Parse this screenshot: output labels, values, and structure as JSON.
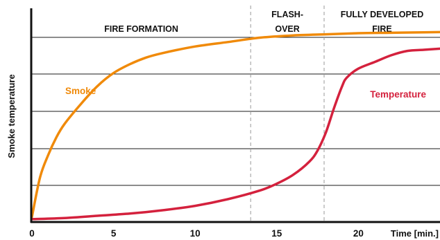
{
  "chart_data": {
    "type": "line",
    "title": "",
    "xlabel": "Time [min.]",
    "ylabel": "Smoke temperature",
    "xlim": [
      0,
      25
    ],
    "x_ticks": [
      "0",
      "5",
      "10",
      "15",
      "20"
    ],
    "y_ticks_labeled": false,
    "grid": "horizontal",
    "phases": [
      {
        "name": "FIRE FORMATION",
        "line1": "FIRE FORMATION",
        "line2": "",
        "start": 0,
        "end": 13.4
      },
      {
        "name": "FLASH-OVER",
        "line1": "FLASH-",
        "line2": "OVER",
        "start": 13.4,
        "end": 17.9
      },
      {
        "name": "FULLY DEVELOPED FIRE",
        "line1": "FULLY DEVELOPED",
        "line2": "FIRE",
        "start": 17.9,
        "end": 25
      }
    ],
    "colors": {
      "smoke": "#F08A0A",
      "temperature": "#D4213D",
      "grid": "#1a1a1a",
      "divider": "#999999"
    },
    "series": [
      {
        "name": "Smoke",
        "color": "#F08A0A",
        "x": [
          0,
          0.5,
          1,
          1.5,
          2,
          3,
          4,
          5,
          6,
          7,
          8,
          10,
          12,
          14,
          16,
          18,
          20,
          22,
          24,
          25
        ],
        "y": [
          0.02,
          0.2,
          0.3,
          0.38,
          0.44,
          0.53,
          0.61,
          0.67,
          0.71,
          0.74,
          0.76,
          0.79,
          0.81,
          0.83,
          0.84,
          0.845,
          0.85,
          0.852,
          0.854,
          0.855
        ]
      },
      {
        "name": "Temperature",
        "color": "#D4213D",
        "x": [
          0,
          2,
          4,
          6,
          8,
          10,
          12,
          14,
          15,
          16,
          17,
          17.5,
          18,
          18.5,
          19,
          19.3,
          20,
          21,
          22,
          23,
          24,
          25
        ],
        "y": [
          0.01,
          0.015,
          0.025,
          0.035,
          0.05,
          0.07,
          0.1,
          0.14,
          0.17,
          0.21,
          0.27,
          0.32,
          0.4,
          0.51,
          0.61,
          0.65,
          0.69,
          0.72,
          0.75,
          0.77,
          0.775,
          0.78
        ]
      }
    ]
  }
}
